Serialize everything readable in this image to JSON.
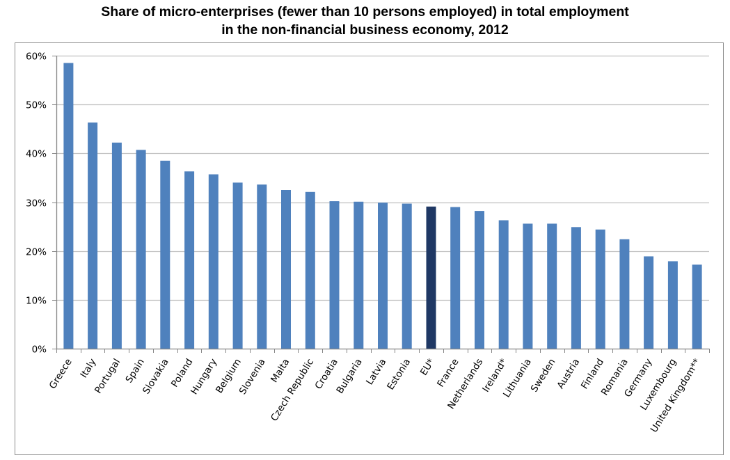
{
  "chart_data": {
    "type": "bar",
    "title_line1": "Share of micro-enterprises (fewer than 10 persons employed) in total employment",
    "title_line2": "in the non-financial business economy, 2012",
    "xlabel": "",
    "ylabel": "",
    "ylim": [
      0,
      60
    ],
    "yticks": [
      0,
      10,
      20,
      30,
      40,
      50,
      60
    ],
    "ytick_labels": [
      "0%",
      "10%",
      "20%",
      "30%",
      "40%",
      "50%",
      "60%"
    ],
    "grid": true,
    "legend": "none",
    "categories": [
      "Greece",
      "Italy",
      "Portugal",
      "Spain",
      "Slovakia",
      "Poland",
      "Hungary",
      "Belgium",
      "Slovenia",
      "Malta",
      "Czech Republic",
      "Croatia",
      "Bulgaria",
      "Latvia",
      "Estonia",
      "EU*",
      "France",
      "Netherlands",
      "Ireland*",
      "Lithuania",
      "Sweden",
      "Austria",
      "Finland",
      "Romania",
      "Germany",
      "Luxembourg",
      "United Kingdom**"
    ],
    "values": [
      58.5,
      46.3,
      42.2,
      40.7,
      38.5,
      36.3,
      35.7,
      34.0,
      33.6,
      32.5,
      32.1,
      30.2,
      30.1,
      29.9,
      29.7,
      29.1,
      29.0,
      28.2,
      26.3,
      25.6,
      25.6,
      24.9,
      24.4,
      22.4,
      18.9,
      17.9,
      17.2
    ],
    "highlight_category": "EU*",
    "colors": {
      "bar": "#4f81bd",
      "highlight": "#1f3864",
      "grid": "#c0c0c0",
      "axis": "#868686"
    }
  }
}
